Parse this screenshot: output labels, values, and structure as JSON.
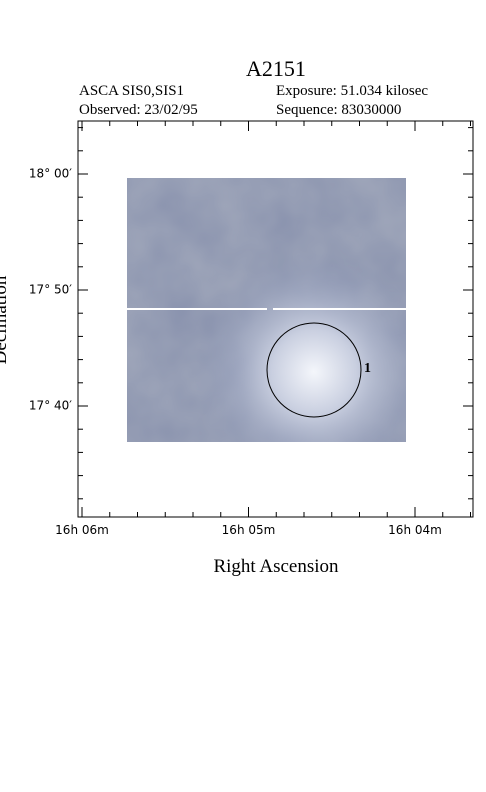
{
  "header": {
    "title": "A2151",
    "instrument": "ASCA SIS0,SIS1",
    "exposure": "Exposure: 51.034 kilosec",
    "observed": "Observed: 23/02/95",
    "sequence": "Sequence: 83030000"
  },
  "axes": {
    "x_label": "Right Ascension",
    "y_label": "Declination",
    "x_ticks": [
      "16h 06m",
      "16h 05m",
      "16h 04m"
    ],
    "y_ticks": [
      "18° 00′",
      "17° 50′",
      "17° 40′"
    ]
  },
  "regions": [
    {
      "label": "1"
    }
  ]
}
